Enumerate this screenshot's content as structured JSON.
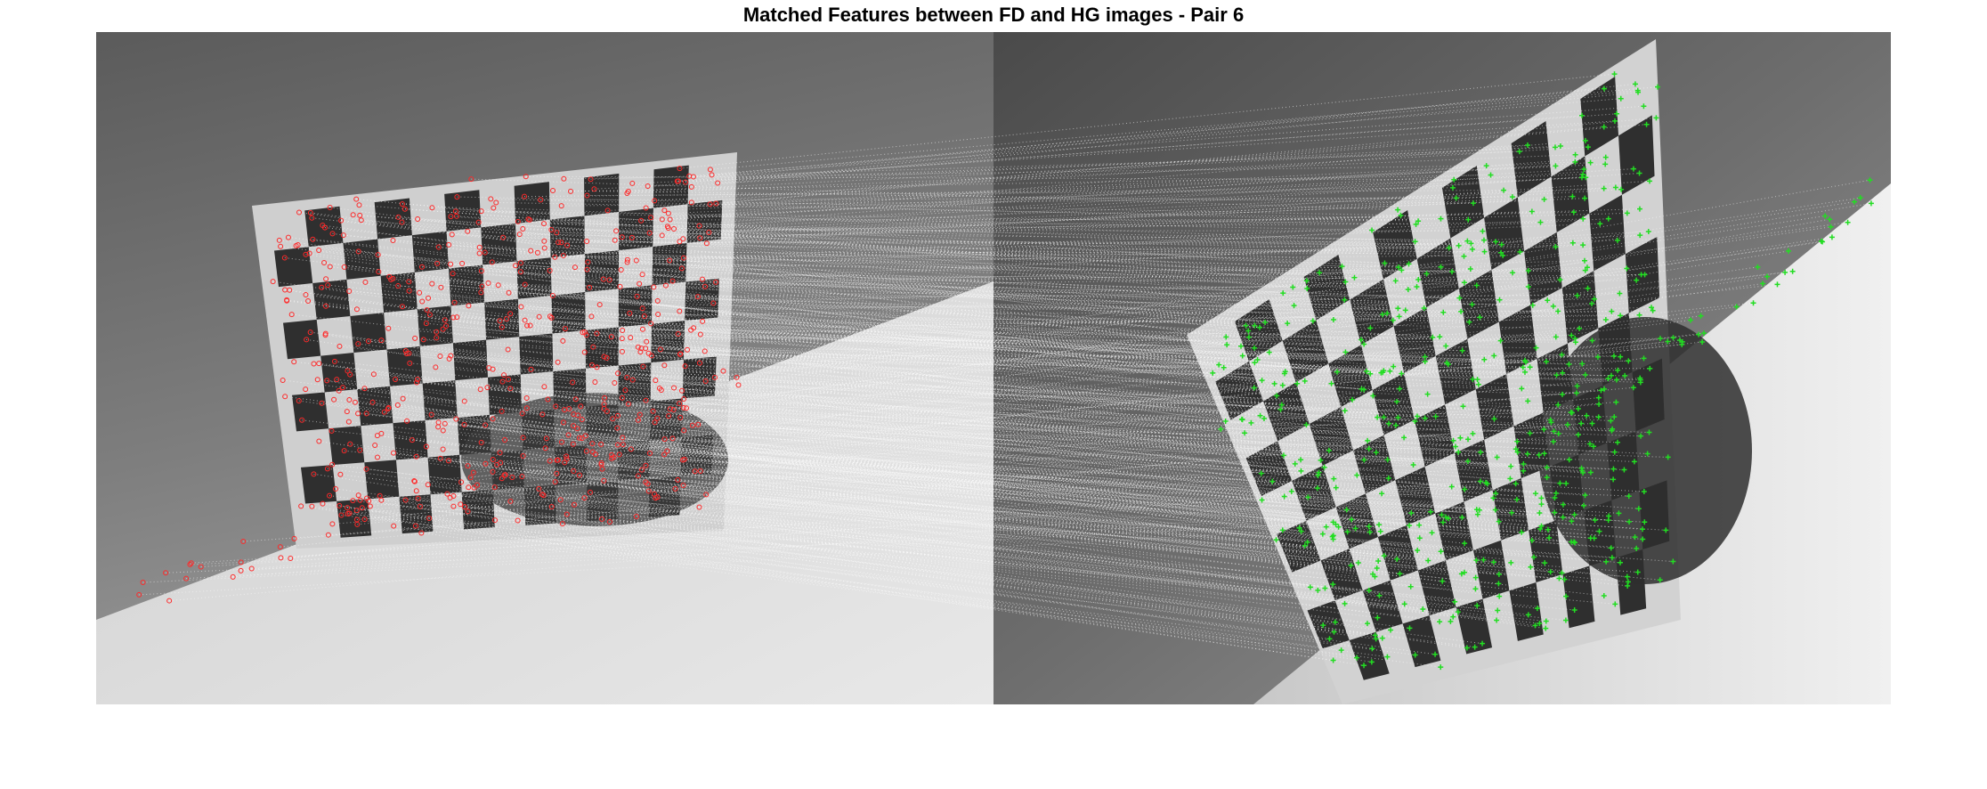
{
  "figure": {
    "title": "Matched Features between FD and HG images - Pair 6"
  },
  "images": {
    "left": {
      "description_color": "grayscale",
      "marker_color": "#ff2a2a"
    },
    "right": {
      "description_color": "grayscale",
      "marker_color": "#22dd22"
    }
  },
  "matches": {
    "line_color": "#ffffff",
    "line_style": "dotted",
    "left_marker": "circle",
    "right_marker": "plus"
  }
}
